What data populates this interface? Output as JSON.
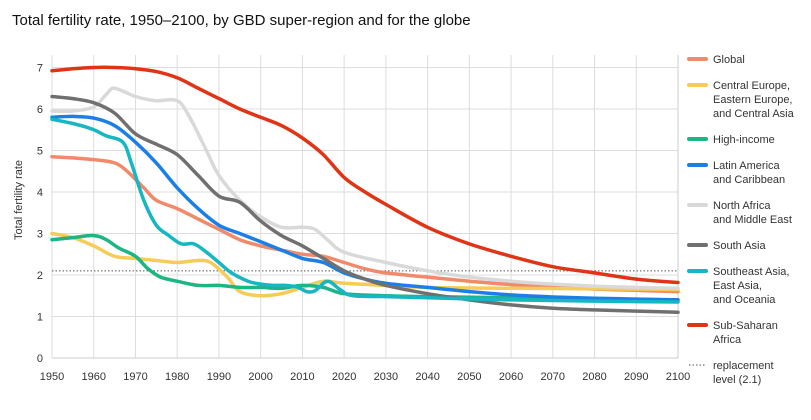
{
  "chart_data": {
    "type": "line",
    "title": "Total fertility rate, 1950–2100, by GBD super-region and for the globe",
    "ylabel": "Total fertility rate",
    "xlabel": "",
    "xlim": [
      1950,
      2100
    ],
    "ylim": [
      0,
      7.3
    ],
    "x_ticks": [
      1950,
      1960,
      1970,
      1980,
      1990,
      2000,
      2010,
      2020,
      2030,
      2040,
      2050,
      2060,
      2070,
      2080,
      2090,
      2100
    ],
    "y_ticks": [
      0,
      1,
      2,
      3,
      4,
      5,
      6,
      7
    ],
    "grid": true,
    "legend_position": "right",
    "replacement": {
      "value": 2.1,
      "label_lines": [
        "replacement",
        "level (2.1)"
      ]
    },
    "series": [
      {
        "name_lines": [
          "Global"
        ],
        "color": "#f08a6a",
        "points": [
          [
            1950,
            4.85
          ],
          [
            1955,
            4.82
          ],
          [
            1960,
            4.78
          ],
          [
            1965,
            4.7
          ],
          [
            1968,
            4.5
          ],
          [
            1972,
            4.1
          ],
          [
            1975,
            3.8
          ],
          [
            1980,
            3.6
          ],
          [
            1985,
            3.35
          ],
          [
            1990,
            3.1
          ],
          [
            1995,
            2.85
          ],
          [
            2000,
            2.7
          ],
          [
            2005,
            2.6
          ],
          [
            2010,
            2.5
          ],
          [
            2015,
            2.45
          ],
          [
            2020,
            2.3
          ],
          [
            2025,
            2.15
          ],
          [
            2030,
            2.05
          ],
          [
            2040,
            1.95
          ],
          [
            2050,
            1.85
          ],
          [
            2060,
            1.77
          ],
          [
            2070,
            1.7
          ],
          [
            2080,
            1.66
          ],
          [
            2090,
            1.63
          ],
          [
            2100,
            1.6
          ]
        ]
      },
      {
        "name_lines": [
          "Central Europe,",
          "Eastern Europe,",
          "and Central Asia"
        ],
        "color": "#f5cc55",
        "points": [
          [
            1950,
            3.0
          ],
          [
            1955,
            2.9
          ],
          [
            1960,
            2.7
          ],
          [
            1965,
            2.45
          ],
          [
            1970,
            2.4
          ],
          [
            1975,
            2.35
          ],
          [
            1980,
            2.3
          ],
          [
            1985,
            2.35
          ],
          [
            1988,
            2.3
          ],
          [
            1992,
            1.95
          ],
          [
            1995,
            1.6
          ],
          [
            2000,
            1.5
          ],
          [
            2005,
            1.55
          ],
          [
            2010,
            1.7
          ],
          [
            2015,
            1.85
          ],
          [
            2020,
            1.8
          ],
          [
            2030,
            1.75
          ],
          [
            2040,
            1.7
          ],
          [
            2060,
            1.68
          ],
          [
            2080,
            1.67
          ],
          [
            2100,
            1.65
          ]
        ]
      },
      {
        "name_lines": [
          "High-income"
        ],
        "color": "#1cb584",
        "points": [
          [
            1950,
            2.85
          ],
          [
            1955,
            2.9
          ],
          [
            1960,
            2.95
          ],
          [
            1963,
            2.85
          ],
          [
            1966,
            2.65
          ],
          [
            1970,
            2.45
          ],
          [
            1973,
            2.15
          ],
          [
            1976,
            1.95
          ],
          [
            1980,
            1.85
          ],
          [
            1985,
            1.75
          ],
          [
            1990,
            1.75
          ],
          [
            1995,
            1.7
          ],
          [
            2000,
            1.7
          ],
          [
            2005,
            1.68
          ],
          [
            2010,
            1.75
          ],
          [
            2015,
            1.7
          ],
          [
            2020,
            1.55
          ],
          [
            2030,
            1.5
          ],
          [
            2040,
            1.48
          ],
          [
            2060,
            1.45
          ],
          [
            2080,
            1.42
          ],
          [
            2100,
            1.4
          ]
        ]
      },
      {
        "name_lines": [
          "Latin America",
          "and Caribbean"
        ],
        "color": "#1a7fe6",
        "points": [
          [
            1950,
            5.8
          ],
          [
            1955,
            5.82
          ],
          [
            1960,
            5.78
          ],
          [
            1965,
            5.6
          ],
          [
            1970,
            5.2
          ],
          [
            1975,
            4.7
          ],
          [
            1980,
            4.1
          ],
          [
            1985,
            3.6
          ],
          [
            1990,
            3.2
          ],
          [
            1995,
            3.0
          ],
          [
            2000,
            2.8
          ],
          [
            2005,
            2.6
          ],
          [
            2010,
            2.4
          ],
          [
            2015,
            2.3
          ],
          [
            2020,
            2.05
          ],
          [
            2025,
            1.9
          ],
          [
            2030,
            1.8
          ],
          [
            2040,
            1.7
          ],
          [
            2050,
            1.6
          ],
          [
            2060,
            1.52
          ],
          [
            2070,
            1.47
          ],
          [
            2080,
            1.44
          ],
          [
            2090,
            1.42
          ],
          [
            2100,
            1.4
          ]
        ]
      },
      {
        "name_lines": [
          "North Africa",
          "and Middle East"
        ],
        "color": "#d9d9d9",
        "points": [
          [
            1950,
            5.95
          ],
          [
            1955,
            5.95
          ],
          [
            1960,
            6.05
          ],
          [
            1963,
            6.35
          ],
          [
            1965,
            6.5
          ],
          [
            1970,
            6.3
          ],
          [
            1975,
            6.2
          ],
          [
            1980,
            6.2
          ],
          [
            1983,
            5.8
          ],
          [
            1987,
            5.0
          ],
          [
            1990,
            4.4
          ],
          [
            1995,
            3.8
          ],
          [
            2000,
            3.4
          ],
          [
            2005,
            3.15
          ],
          [
            2010,
            3.15
          ],
          [
            2013,
            3.1
          ],
          [
            2016,
            2.85
          ],
          [
            2020,
            2.55
          ],
          [
            2030,
            2.3
          ],
          [
            2040,
            2.1
          ],
          [
            2050,
            1.95
          ],
          [
            2060,
            1.85
          ],
          [
            2070,
            1.78
          ],
          [
            2080,
            1.73
          ],
          [
            2090,
            1.7
          ],
          [
            2100,
            1.68
          ]
        ]
      },
      {
        "name_lines": [
          "South Asia"
        ],
        "color": "#707070",
        "points": [
          [
            1950,
            6.3
          ],
          [
            1955,
            6.25
          ],
          [
            1960,
            6.15
          ],
          [
            1965,
            5.9
          ],
          [
            1970,
            5.4
          ],
          [
            1975,
            5.15
          ],
          [
            1980,
            4.9
          ],
          [
            1985,
            4.4
          ],
          [
            1990,
            3.9
          ],
          [
            1995,
            3.75
          ],
          [
            2000,
            3.3
          ],
          [
            2005,
            2.95
          ],
          [
            2010,
            2.7
          ],
          [
            2015,
            2.4
          ],
          [
            2020,
            2.1
          ],
          [
            2025,
            1.9
          ],
          [
            2030,
            1.75
          ],
          [
            2040,
            1.55
          ],
          [
            2050,
            1.4
          ],
          [
            2060,
            1.28
          ],
          [
            2070,
            1.2
          ],
          [
            2080,
            1.16
          ],
          [
            2090,
            1.13
          ],
          [
            2100,
            1.1
          ]
        ]
      },
      {
        "name_lines": [
          "Southeast Asia,",
          "East Asia,",
          "and Oceania"
        ],
        "color": "#16b6c2",
        "points": [
          [
            1950,
            5.75
          ],
          [
            1955,
            5.65
          ],
          [
            1960,
            5.5
          ],
          [
            1963,
            5.35
          ],
          [
            1967,
            5.2
          ],
          [
            1969,
            4.7
          ],
          [
            1972,
            3.8
          ],
          [
            1975,
            3.2
          ],
          [
            1978,
            2.95
          ],
          [
            1981,
            2.75
          ],
          [
            1984,
            2.75
          ],
          [
            1987,
            2.55
          ],
          [
            1990,
            2.3
          ],
          [
            1993,
            2.05
          ],
          [
            1997,
            1.85
          ],
          [
            2000,
            1.78
          ],
          [
            2003,
            1.75
          ],
          [
            2006,
            1.75
          ],
          [
            2009,
            1.7
          ],
          [
            2011,
            1.6
          ],
          [
            2013,
            1.62
          ],
          [
            2016,
            1.85
          ],
          [
            2019,
            1.65
          ],
          [
            2022,
            1.5
          ],
          [
            2030,
            1.48
          ],
          [
            2040,
            1.45
          ],
          [
            2060,
            1.4
          ],
          [
            2080,
            1.37
          ],
          [
            2100,
            1.35
          ]
        ]
      },
      {
        "name_lines": [
          "Sub-Saharan",
          "Africa"
        ],
        "color": "#e03417",
        "points": [
          [
            1950,
            6.92
          ],
          [
            1955,
            6.97
          ],
          [
            1960,
            7.0
          ],
          [
            1965,
            7.0
          ],
          [
            1970,
            6.97
          ],
          [
            1975,
            6.9
          ],
          [
            1980,
            6.75
          ],
          [
            1985,
            6.5
          ],
          [
            1990,
            6.25
          ],
          [
            1995,
            6.0
          ],
          [
            2000,
            5.8
          ],
          [
            2005,
            5.6
          ],
          [
            2010,
            5.3
          ],
          [
            2015,
            4.9
          ],
          [
            2020,
            4.35
          ],
          [
            2025,
            4.0
          ],
          [
            2030,
            3.7
          ],
          [
            2040,
            3.15
          ],
          [
            2050,
            2.75
          ],
          [
            2060,
            2.45
          ],
          [
            2070,
            2.2
          ],
          [
            2080,
            2.05
          ],
          [
            2090,
            1.9
          ],
          [
            2100,
            1.82
          ]
        ]
      }
    ]
  }
}
